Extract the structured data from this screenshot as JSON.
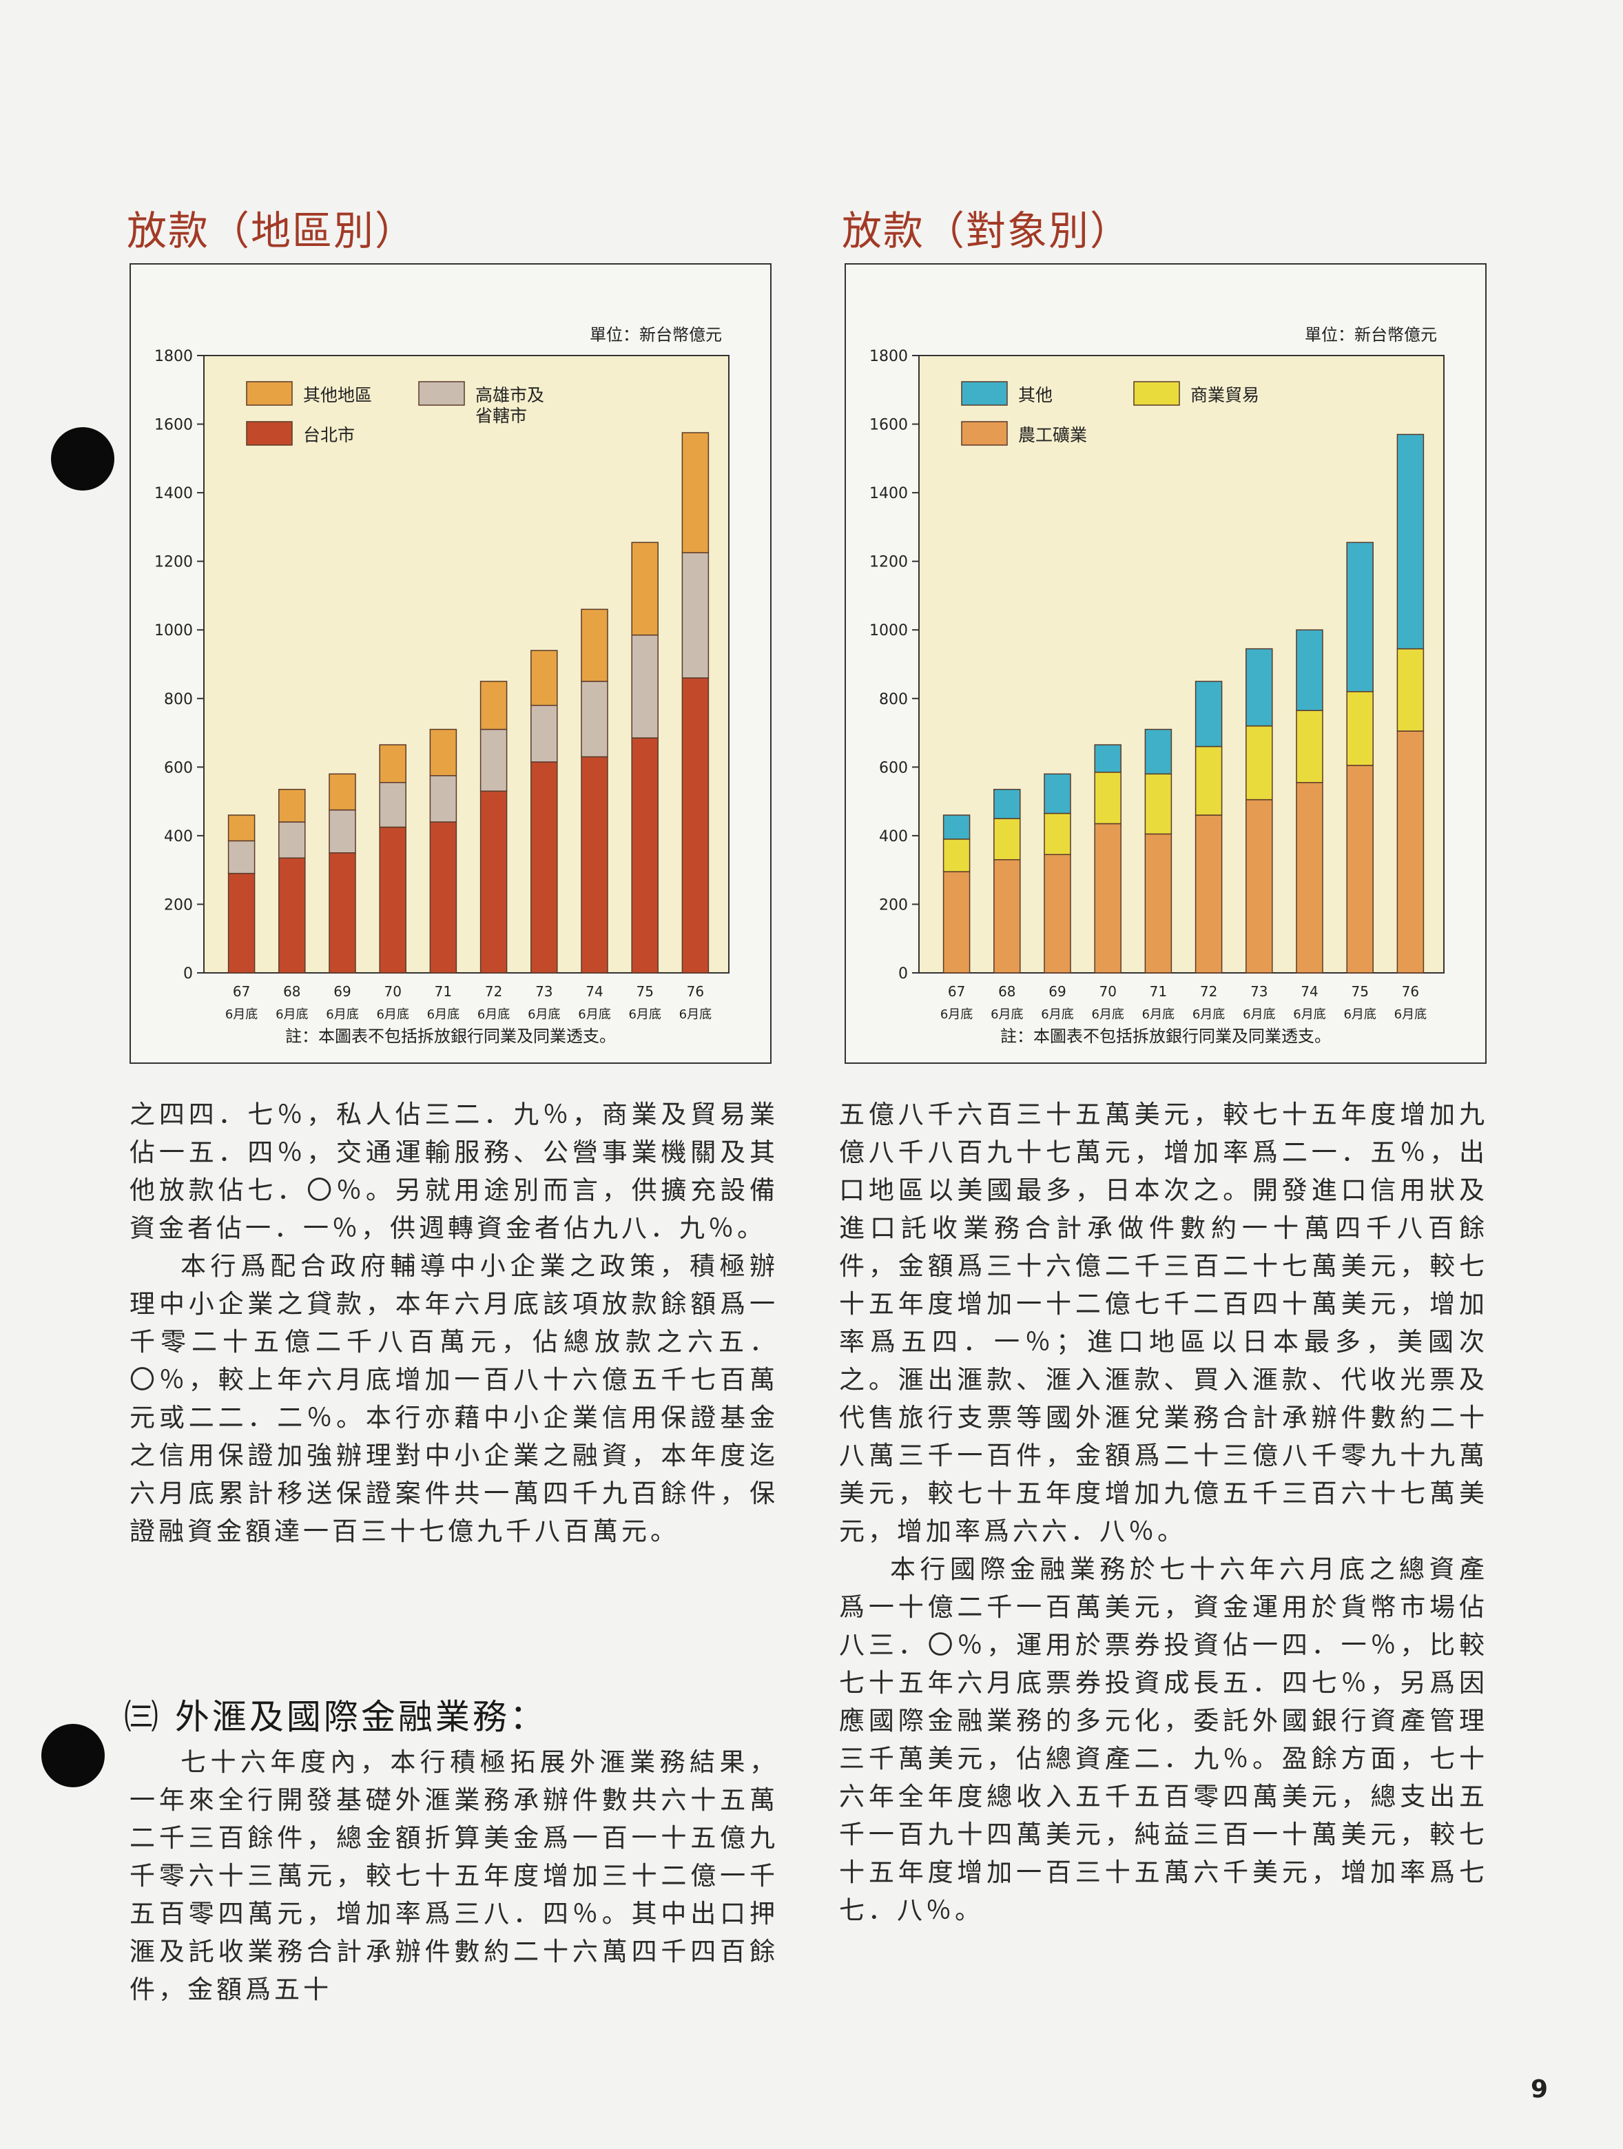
{
  "charts": [
    {
      "title": "放款（地區別）",
      "unit": "單位：新台幣億元",
      "note": "註：本圖表不包括拆放銀行同業及同業透支。",
      "chart_data": {
        "type": "bar",
        "stacked": true,
        "categories": [
          "67",
          "68",
          "69",
          "70",
          "71",
          "72",
          "73",
          "74",
          "75",
          "76"
        ],
        "category_sublabel": "6月底",
        "ylim": [
          0,
          1800
        ],
        "yticks": [
          0,
          200,
          400,
          600,
          800,
          1000,
          1200,
          1400,
          1600,
          1800
        ],
        "legend": "top-left",
        "series": [
          {
            "name": "台北市",
            "color": "#c24a2a",
            "values": [
              290,
              335,
              350,
              425,
              440,
              530,
              615,
              630,
              685,
              860
            ]
          },
          {
            "name": "高雄市及省轄市",
            "color": "#cbbcb0",
            "values": [
              95,
              105,
              125,
              130,
              135,
              180,
              165,
              220,
              300,
              365
            ]
          },
          {
            "name": "其他地區",
            "color": "#e7a243",
            "values": [
              75,
              95,
              105,
              110,
              135,
              140,
              160,
              210,
              270,
              350
            ]
          }
        ],
        "legend_order": [
          {
            "name": "其他地區",
            "color": "#e7a243"
          },
          {
            "name": "高雄市及\n省轄市",
            "color": "#cbbcb0"
          },
          {
            "name": "台北市",
            "color": "#c24a2a"
          }
        ]
      }
    },
    {
      "title": "放款（對象別）",
      "unit": "單位：新台幣億元",
      "note": "註：本圖表不包括拆放銀行同業及同業透支。",
      "chart_data": {
        "type": "bar",
        "stacked": true,
        "categories": [
          "67",
          "68",
          "69",
          "70",
          "71",
          "72",
          "73",
          "74",
          "75",
          "76"
        ],
        "category_sublabel": "6月底",
        "ylim": [
          0,
          1800
        ],
        "yticks": [
          0,
          200,
          400,
          600,
          800,
          1000,
          1200,
          1400,
          1600,
          1800
        ],
        "legend": "top-left",
        "series": [
          {
            "name": "農工礦業",
            "color": "#e69b52",
            "values": [
              295,
              330,
              345,
              435,
              405,
              460,
              505,
              555,
              605,
              705
            ]
          },
          {
            "name": "商業貿易",
            "color": "#eadb3c",
            "values": [
              95,
              120,
              120,
              150,
              175,
              200,
              215,
              210,
              215,
              240
            ]
          },
          {
            "name": "其他",
            "color": "#3fb0c8",
            "values": [
              70,
              85,
              115,
              80,
              130,
              190,
              225,
              235,
              435,
              625
            ]
          }
        ],
        "legend_order": [
          {
            "name": "其他",
            "color": "#3fb0c8"
          },
          {
            "name": "商業貿易",
            "color": "#eadb3c"
          },
          {
            "name": "農工礦業",
            "color": "#e69b52"
          }
        ]
      }
    }
  ],
  "text": {
    "left_p1": "之四四．七％，私人佔三二．九％，商業及貿易業佔一五．四％，交通運輸服務、公營事業機關及其他放款佔七．〇％。另就用途別而言，供擴充設備資金者佔一．一％，供週轉資金者佔九八．九％。",
    "left_p2": "本行爲配合政府輔導中小企業之政策，積極辦理中小企業之貸款，本年六月底該項放款餘額爲一千零二十五億二千八百萬元，佔總放款之六五．〇％，較上年六月底增加一百八十六億五千七百萬元或二二．二％。本行亦藉中小企業信用保證基金之信用保證加強辦理對中小企業之融資，本年度迄六月底累計移送保證案件共一萬四千九百餘件，保證融資金額達一百三十七億九千八百萬元。",
    "section_heading": "㈢ 外滙及國際金融業務：",
    "left_p3": "七十六年度內，本行積極拓展外滙業務結果，一年來全行開發基礎外滙業務承辦件數共六十五萬二千三百餘件，總金額折算美金爲一百一十五億九千零六十三萬元，較七十五年度增加三十二億一千五百零四萬元，增加率爲三八．四％。其中出口押滙及託收業務合計承辦件數約二十六萬四千四百餘件，金額爲五十",
    "right_p1": "五億八千六百三十五萬美元，較七十五年度增加九億八千八百九十七萬元，增加率爲二一．五％，出口地區以美國最多，日本次之。開發進口信用狀及進口託收業務合計承做件數約一十萬四千八百餘件，金額爲三十六億二千三百二十七萬美元，較七十五年度增加一十二億七千二百四十萬美元，增加率爲五四．一％；進口地區以日本最多，美國次之。滙出滙款、滙入滙款、買入滙款、代收光票及代售旅行支票等國外滙兌業務合計承辦件數約二十八萬三千一百件，金額爲二十三億八千零九十九萬美元，較七十五年度增加九億五千三百六十七萬美元，增加率爲六六．八％。",
    "right_p2": "本行國際金融業務於七十六年六月底之總資產爲一十億二千一百萬美元，資金運用於貨幣市場佔八三．〇％，運用於票券投資佔一四．一％，比較七十五年六月底票券投資成長五．四七％，另爲因應國際金融業務的多元化，委託外國銀行資產管理三千萬美元，佔總資產二．九％。盈餘方面，七十六年全年度總收入五千五百零四萬美元，總支出五千一百九十四萬美元，純益三百一十萬美元，較七十五年度增加一百三十五萬六千美元，增加率爲七七．八％。",
    "page_number": "9"
  }
}
